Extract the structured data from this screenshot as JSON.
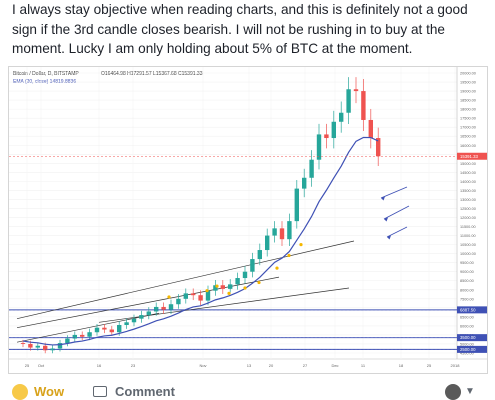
{
  "post": {
    "text": "I always stay objective when reading charts, and this is definitely not a good sign if the 3rd candle closes bearish. I will not be rushing in to buy at the moment. Lucky I am only holding about 5% of BTC at the moment."
  },
  "chart": {
    "header": "Bitcoin / Dollar, D, BITSTAMP",
    "ohlc": "O16464.98 H17291.57 L15367.68 C15391.33",
    "indicator": "EMA (20, close)  14819.8836",
    "price_label": "15391.33",
    "support_label_1": "6887.50",
    "support_label_2": "3500.00",
    "support_label_3": "2500.00",
    "y_ticks": [
      "20000.00",
      "19500.00",
      "19000.00",
      "18500.00",
      "18000.00",
      "17500.00",
      "17000.00",
      "16500.00",
      "16000.00",
      "15500.00",
      "15000.00",
      "14500.00",
      "14000.00",
      "13500.00",
      "13000.00",
      "12500.00",
      "12000.00",
      "11500.00",
      "11000.00",
      "10500.00",
      "10000.00",
      "9500.00",
      "9000.00",
      "8500.00",
      "8000.00",
      "7500.00",
      "7000.00",
      "6500.00",
      "6000.00",
      "5500.00",
      "5000.00",
      "4500.00"
    ],
    "x_ticks": [
      "25",
      "Oct",
      "16",
      "23",
      "Nov",
      "13",
      "20",
      "27",
      "Dec",
      "11",
      "18",
      "25",
      "2018"
    ],
    "colors": {
      "bull": "#26a69a",
      "bear": "#ef5350",
      "ema": "#3f51b5",
      "trend": "#333333",
      "support": "#3f51b5",
      "arrow": "#3f51b5",
      "signal": "#f5b700",
      "price": "#ef5350"
    }
  },
  "chart_data": {
    "type": "candlestick",
    "ema_label": "EMA (20, close)",
    "ema_value": 14819.8836,
    "last_price": 15391.33,
    "open": 16464.98,
    "high": 17291.57,
    "low": 15367.68,
    "close": 15391.33,
    "levels": [
      6887.5,
      3500.0,
      2500.0
    ]
  },
  "actions": {
    "wow_label": "Wow",
    "comment_label": "Comment"
  }
}
